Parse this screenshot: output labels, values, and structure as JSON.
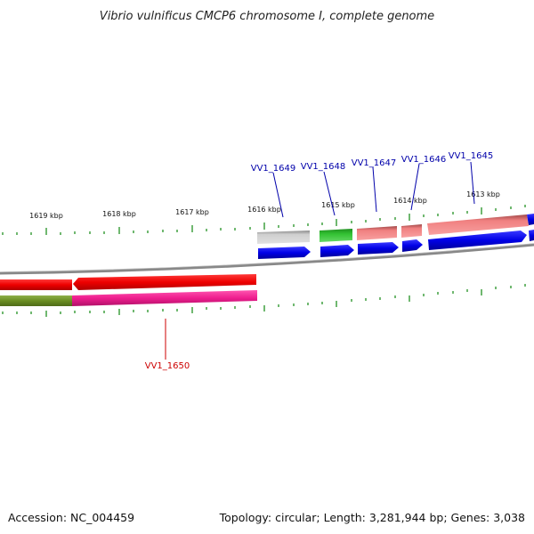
{
  "title": "Vibrio vulnificus CMCP6 chromosome I, complete genome",
  "accession": "Accession: NC_004459",
  "topology": "Topology: circular; Length: 3,281,944 bp; Genes: 3,038",
  "scale_labels": [
    "1619 kbp",
    "1618 kbp",
    "1617 kbp",
    "1616 kbp",
    "1615 kbp",
    "1614 kbp",
    "1613 kbp"
  ],
  "gene_labels": [
    "VV1_1649",
    "VV1_1648",
    "VV1_1647",
    "VV1_1646",
    "VV1_1645",
    "VV1_1650"
  ],
  "colors": {
    "plus_strand_cds": "#0000ee",
    "minus_strand_cds": "#ee0000",
    "label_plus": "#0000aa",
    "label_minus": "#cc0000",
    "tick": "#339933",
    "backbone": "#808080",
    "gene_grey": "#c0c0c0",
    "gene_green": "#33bb33",
    "gene_pink": "#f08080",
    "gene_magenta": "#ee1e8e",
    "gene_olive": "#6b8e23"
  }
}
